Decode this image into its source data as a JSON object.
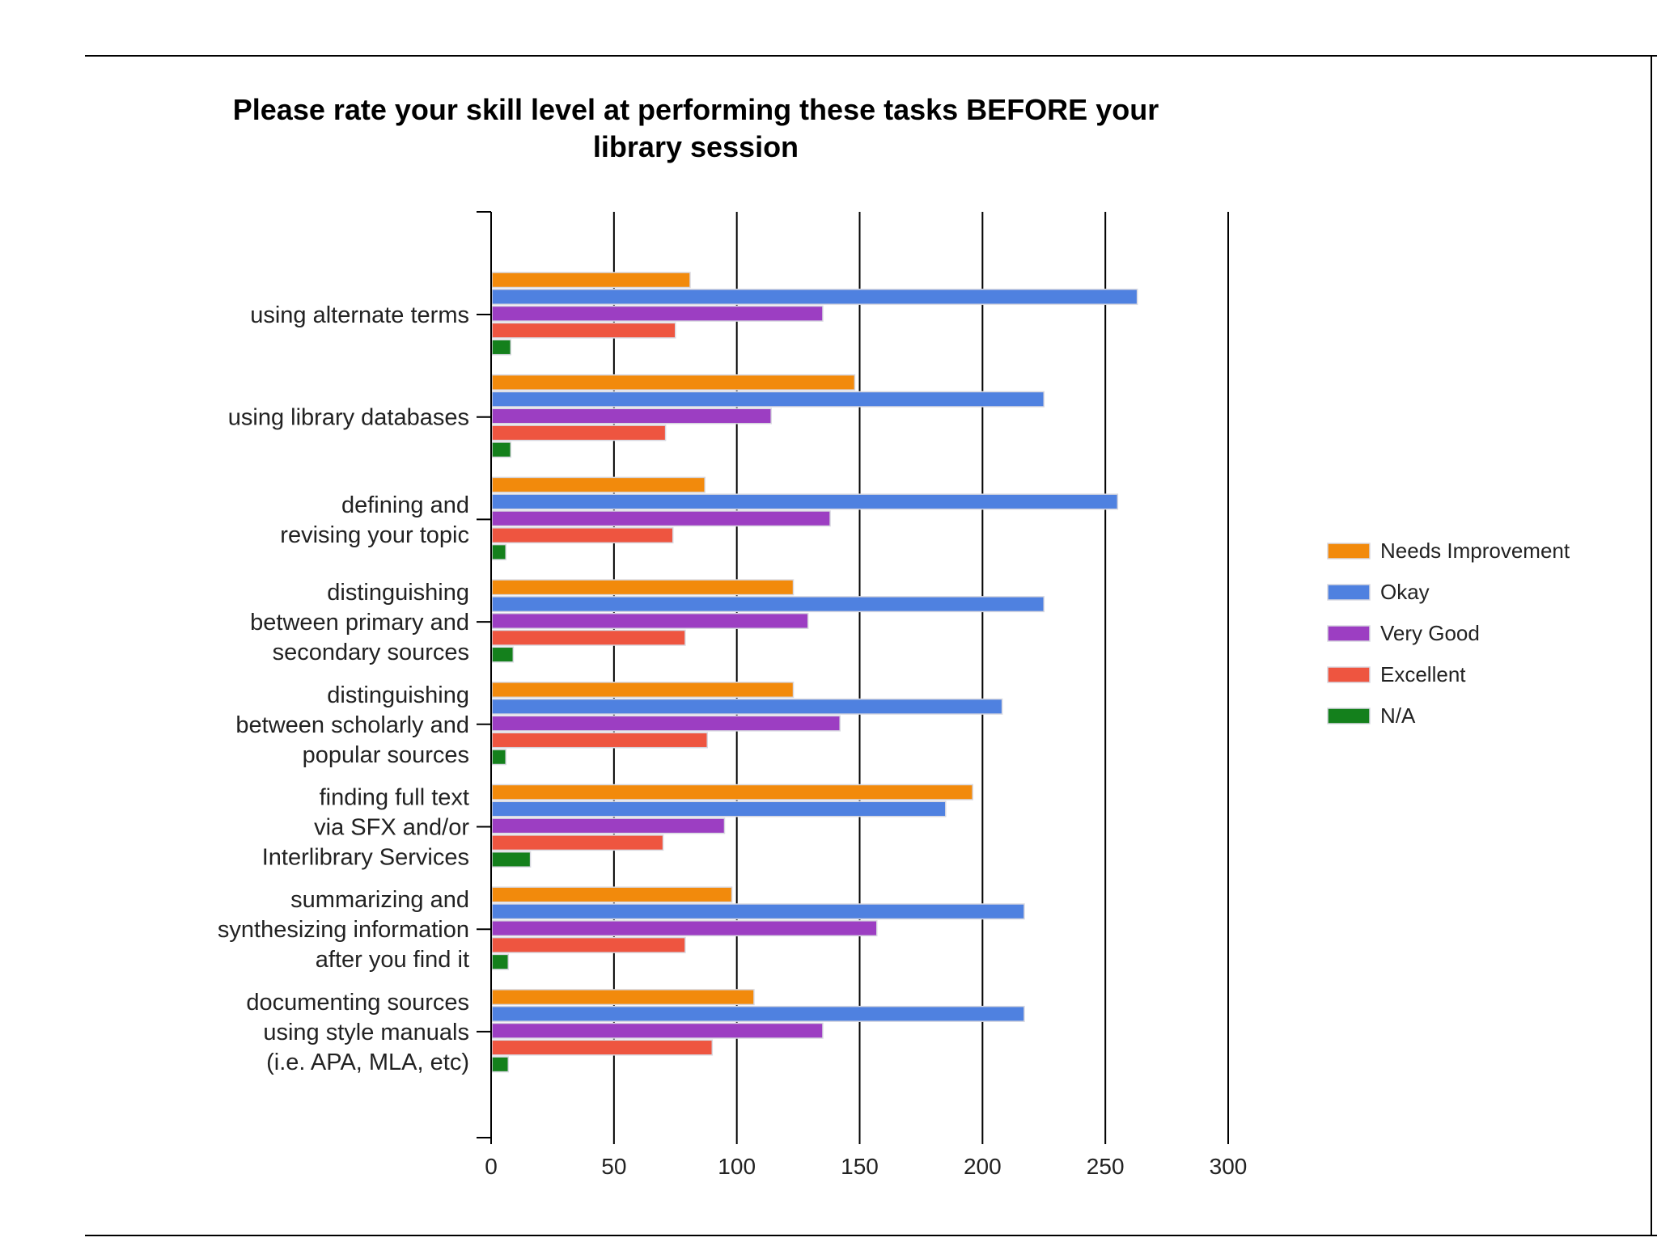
{
  "chart_data": {
    "type": "bar",
    "orientation": "horizontal",
    "title": "Please rate your skill level at performing these tasks BEFORE your library session",
    "title_lines": [
      "Please rate your skill level at performing these tasks BEFORE your",
      "library session"
    ],
    "categories": [
      "using alternate terms",
      "using library databases",
      "defining and revising your topic",
      "distinguishing between primary and secondary sources",
      "distinguishing between scholarly and popular sources",
      "finding full text via SFX and/or Interlibrary Services",
      "summarizing and synthesizing information after you find it",
      "documenting sources using style manuals (i.e. APA, MLA, etc)"
    ],
    "category_lines": [
      [
        "using alternate terms"
      ],
      [
        "using library databases"
      ],
      [
        "defining and",
        "revising your topic"
      ],
      [
        "distinguishing",
        "between primary and",
        "secondary sources"
      ],
      [
        "distinguishing",
        "between scholarly and",
        "popular sources"
      ],
      [
        "finding full text",
        "via SFX and/or",
        "Interlibrary Services"
      ],
      [
        "summarizing and",
        "synthesizing information",
        "after you find it"
      ],
      [
        "documenting sources",
        "using style manuals",
        "(i.e. APA, MLA, etc)"
      ]
    ],
    "series": [
      {
        "name": "Needs Improvement",
        "color": "#f28a0c",
        "values": [
          81,
          148,
          87,
          123,
          123,
          196,
          98,
          107
        ]
      },
      {
        "name": "Okay",
        "color": "#4f81e0",
        "values": [
          263,
          225,
          255,
          225,
          208,
          185,
          217,
          217
        ]
      },
      {
        "name": "Very Good",
        "color": "#9c3ec2",
        "values": [
          135,
          114,
          138,
          129,
          142,
          95,
          157,
          135
        ]
      },
      {
        "name": "Excellent",
        "color": "#ee5540",
        "values": [
          75,
          71,
          74,
          79,
          88,
          70,
          79,
          90
        ]
      },
      {
        "name": "N/A",
        "color": "#14801c",
        "values": [
          8,
          8,
          6,
          9,
          6,
          16,
          7,
          7
        ]
      }
    ],
    "xlim": [
      0,
      300
    ],
    "xticks": [
      "0",
      "50",
      "100",
      "150",
      "200",
      "250",
      "300"
    ],
    "xlabel": "",
    "ylabel": "",
    "grid": "vertical",
    "legend_position": "right"
  }
}
